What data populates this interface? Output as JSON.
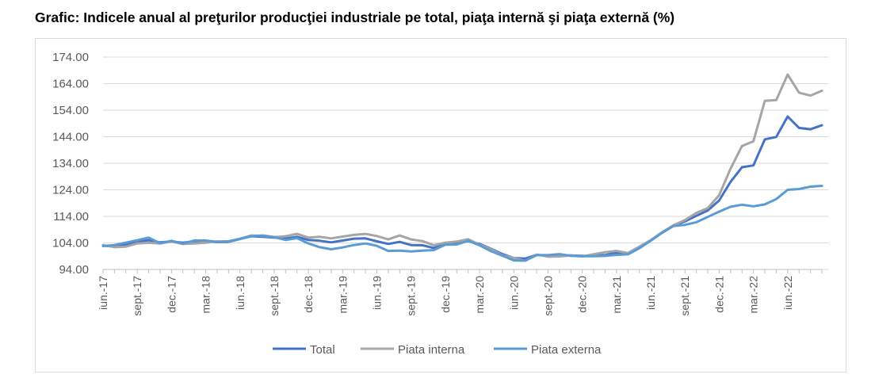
{
  "page_title": "Grafic: Indicele anual al preţurilor producţiei industriale pe total, piaţa internă şi piaţa externă (%)",
  "chart_data": {
    "type": "line",
    "title": "Grafic: Indicele anual al preţurilor producţiei industriale pe total, piaţa internă şi piaţa externă (%)",
    "xlabel": "",
    "ylabel": "",
    "ylim": [
      94,
      174
    ],
    "yticks": [
      "94.00",
      "104.00",
      "114.00",
      "124.00",
      "134.00",
      "144.00",
      "154.00",
      "164.00",
      "174.00"
    ],
    "tick_labels": [
      "iun.-17",
      "sept.-17",
      "dec.-17",
      "mar.-18",
      "iun.-18",
      "sept.-18",
      "dec.-18",
      "mar.-19",
      "iun.-19",
      "sept.-19",
      "dec.-19",
      "mar.-20",
      "iun.-20",
      "sept.-20",
      "dec.-20",
      "mar.-21",
      "iun.-21",
      "sept.-21",
      "dec.-21",
      "mar.-22",
      "iun.-22"
    ],
    "grid": "horizontal",
    "legend_position": "bottom",
    "series": [
      {
        "name": "Total",
        "color": "#4472c4",
        "values": [
          103.0,
          102.6,
          103.2,
          104.5,
          105.0,
          104.2,
          104.5,
          104.1,
          104.6,
          104.6,
          104.3,
          104.4,
          105.5,
          106.5,
          106.3,
          106.0,
          105.6,
          106.3,
          105.1,
          104.8,
          104.2,
          104.9,
          105.6,
          105.7,
          104.6,
          103.6,
          104.4,
          103.2,
          103.1,
          102.1,
          103.6,
          104.2,
          104.7,
          103.6,
          101.8,
          99.8,
          98.3,
          98.1,
          99.5,
          99.2,
          99.3,
          99.3,
          99.1,
          99.2,
          99.4,
          100.3,
          100.1,
          102.3,
          105.0,
          108.0,
          110.5,
          112.1,
          114.2,
          116.2,
          120.0,
          127.0,
          132.5,
          133.2,
          143.0,
          143.9,
          151.6,
          147.3,
          146.8,
          148.3
        ]
      },
      {
        "name": "Piata interna",
        "color": "#a5a5a5",
        "values": [
          103.2,
          102.4,
          102.6,
          103.8,
          104.1,
          103.8,
          104.5,
          103.6,
          103.8,
          104.1,
          104.6,
          104.5,
          105.6,
          106.8,
          106.7,
          106.2,
          106.5,
          107.4,
          106.0,
          106.3,
          105.7,
          106.4,
          107.0,
          107.4,
          106.6,
          105.3,
          106.8,
          105.3,
          104.7,
          103.1,
          104.1,
          104.5,
          105.4,
          103.3,
          101.6,
          99.3,
          98.3,
          97.3,
          99.6,
          98.8,
          98.9,
          99.3,
          98.9,
          99.7,
          100.5,
          101.0,
          100.2,
          102.6,
          105.0,
          108.0,
          110.7,
          112.6,
          115.3,
          117.1,
          122.0,
          132.0,
          140.5,
          142.3,
          157.5,
          157.8,
          167.4,
          160.6,
          159.5,
          161.3
        ]
      },
      {
        "name": "Piata externa",
        "color": "#5b9bd5",
        "values": [
          102.8,
          103.2,
          104.1,
          105.0,
          106.0,
          103.9,
          104.8,
          103.7,
          104.9,
          104.9,
          104.4,
          104.6,
          105.5,
          106.5,
          106.8,
          106.2,
          105.1,
          105.8,
          103.8,
          102.4,
          101.6,
          102.3,
          103.2,
          103.8,
          102.9,
          101.0,
          101.1,
          100.8,
          101.1,
          101.3,
          103.3,
          103.4,
          104.8,
          103.1,
          100.9,
          99.2,
          97.4,
          97.3,
          99.4,
          99.4,
          99.8,
          99.1,
          99.0,
          99.0,
          99.1,
          99.5,
          99.7,
          102.0,
          104.8,
          107.8,
          110.4,
          110.8,
          111.8,
          113.8,
          115.8,
          117.6,
          118.4,
          117.8,
          118.5,
          120.5,
          124.0,
          124.3,
          125.2,
          125.5
        ]
      }
    ]
  }
}
